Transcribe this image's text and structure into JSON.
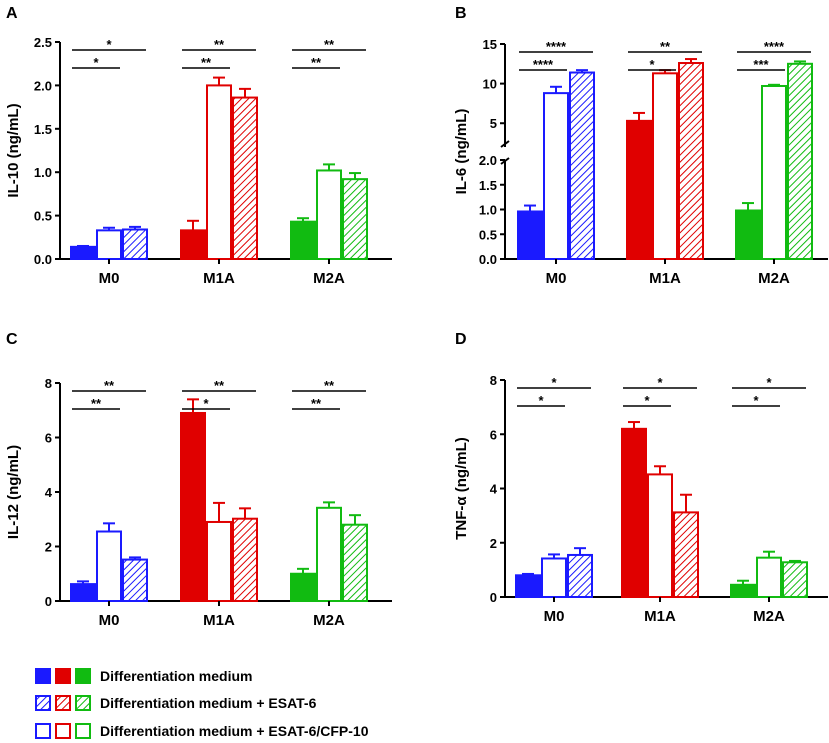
{
  "figure_title": "",
  "colors": {
    "M0": "#1a1aff",
    "M1A": "#e00000",
    "M2A": "#11bb11"
  },
  "legend": [
    {
      "pattern": "solid",
      "label": "Differentiation medium"
    },
    {
      "pattern": "hatched",
      "label": "Differentiation medium + ESAT-6"
    },
    {
      "pattern": "open",
      "label": "Differentiation medium + ESAT-6/CFP-10"
    }
  ],
  "chart_data": [
    {
      "panel": "A",
      "type": "bar",
      "ylabel": "IL-10 (ng/mL)",
      "categories": [
        "M0",
        "M1A",
        "M2A"
      ],
      "ylim": [
        0,
        2.5
      ],
      "yticks": [
        "0.0",
        "0.5",
        "1.0",
        "1.5",
        "2.0",
        "2.5"
      ],
      "ytick_values": [
        0,
        0.5,
        1.0,
        1.5,
        2.0,
        2.5
      ],
      "series": [
        {
          "name": "Differentiation medium",
          "pattern": "solid",
          "values": [
            0.14,
            0.33,
            0.43
          ],
          "errors": [
            0.01,
            0.11,
            0.04
          ]
        },
        {
          "name": "Differentiation medium + ESAT-6/CFP-10",
          "pattern": "open",
          "values": [
            0.33,
            2.0,
            1.02
          ],
          "errors": [
            0.03,
            0.09,
            0.07
          ]
        },
        {
          "name": "Differentiation medium + ESAT-6",
          "pattern": "hatched",
          "values": [
            0.34,
            1.86,
            0.92
          ],
          "errors": [
            0.03,
            0.1,
            0.07
          ]
        }
      ],
      "significance": [
        {
          "group": "M0",
          "lower": "*",
          "upper": "*"
        },
        {
          "group": "M1A",
          "lower": "**",
          "upper": "**"
        },
        {
          "group": "M2A",
          "lower": "**",
          "upper": "**"
        }
      ]
    },
    {
      "panel": "B",
      "type": "bar",
      "ylabel": "IL-6 (ng/mL)",
      "categories": [
        "M0",
        "M1A",
        "M2A"
      ],
      "axis_break": {
        "lower": [
          0,
          2.0
        ],
        "upper": [
          2.0,
          15
        ]
      },
      "yticks_lower": [
        "0.0",
        "0.5",
        "1.0",
        "1.5",
        "2.0"
      ],
      "ytick_values_lower": [
        0,
        0.5,
        1.0,
        1.5,
        2.0
      ],
      "yticks_upper": [
        "5",
        "10",
        "15"
      ],
      "ytick_values_upper": [
        5,
        10,
        15
      ],
      "series": [
        {
          "name": "Differentiation medium",
          "pattern": "solid",
          "values": [
            0.96,
            5.3,
            0.98
          ],
          "errors": [
            0.12,
            1.0,
            0.15
          ]
        },
        {
          "name": "Differentiation medium + ESAT-6/CFP-10",
          "pattern": "open",
          "values": [
            8.8,
            11.3,
            9.7
          ],
          "errors": [
            0.8,
            0.4,
            0.15
          ]
        },
        {
          "name": "Differentiation medium + ESAT-6",
          "pattern": "hatched",
          "values": [
            11.4,
            12.6,
            12.5
          ],
          "errors": [
            0.3,
            0.5,
            0.3
          ]
        }
      ],
      "significance": [
        {
          "group": "M0",
          "lower": "****",
          "upper": "****"
        },
        {
          "group": "M1A",
          "lower": "*",
          "upper": "**"
        },
        {
          "group": "M2A",
          "lower": "***",
          "upper": "****"
        }
      ]
    },
    {
      "panel": "C",
      "type": "bar",
      "ylabel": "IL-12 (ng/mL)",
      "categories": [
        "M0",
        "M1A",
        "M2A"
      ],
      "ylim": [
        0,
        8
      ],
      "yticks": [
        "0",
        "2",
        "4",
        "6",
        "8"
      ],
      "ytick_values": [
        0,
        2,
        4,
        6,
        8
      ],
      "series": [
        {
          "name": "Differentiation medium",
          "pattern": "solid",
          "values": [
            0.62,
            6.9,
            1.0
          ],
          "errors": [
            0.1,
            0.5,
            0.18
          ]
        },
        {
          "name": "Differentiation medium + ESAT-6/CFP-10",
          "pattern": "open",
          "values": [
            2.55,
            2.9,
            3.42
          ],
          "errors": [
            0.3,
            0.7,
            0.2
          ]
        },
        {
          "name": "Differentiation medium + ESAT-6",
          "pattern": "hatched",
          "values": [
            1.52,
            3.02,
            2.8
          ],
          "errors": [
            0.08,
            0.38,
            0.35
          ]
        }
      ],
      "significance": [
        {
          "group": "M0",
          "lower": "**",
          "upper": "**"
        },
        {
          "group": "M1A",
          "lower": "*",
          "upper": "**"
        },
        {
          "group": "M2A",
          "lower": "**",
          "upper": "**"
        }
      ]
    },
    {
      "panel": "D",
      "type": "bar",
      "ylabel": "TNF-α (ng/mL)",
      "categories": [
        "M0",
        "M1A",
        "M2A"
      ],
      "ylim": [
        0,
        8
      ],
      "yticks": [
        "0",
        "2",
        "4",
        "6",
        "8"
      ],
      "ytick_values": [
        0,
        2,
        4,
        6,
        8
      ],
      "series": [
        {
          "name": "Differentiation medium",
          "pattern": "solid",
          "values": [
            0.8,
            6.2,
            0.45
          ],
          "errors": [
            0.05,
            0.25,
            0.15
          ]
        },
        {
          "name": "Differentiation medium + ESAT-6/CFP-10",
          "pattern": "open",
          "values": [
            1.42,
            4.52,
            1.45
          ],
          "errors": [
            0.15,
            0.3,
            0.22
          ]
        },
        {
          "name": "Differentiation medium + ESAT-6",
          "pattern": "hatched",
          "values": [
            1.55,
            3.12,
            1.28
          ],
          "errors": [
            0.25,
            0.65,
            0.05
          ]
        }
      ],
      "significance": [
        {
          "group": "M0",
          "lower": "*",
          "upper": "*"
        },
        {
          "group": "M1A",
          "lower": "*",
          "upper": "*"
        },
        {
          "group": "M2A",
          "lower": "*",
          "upper": "*"
        }
      ]
    }
  ]
}
